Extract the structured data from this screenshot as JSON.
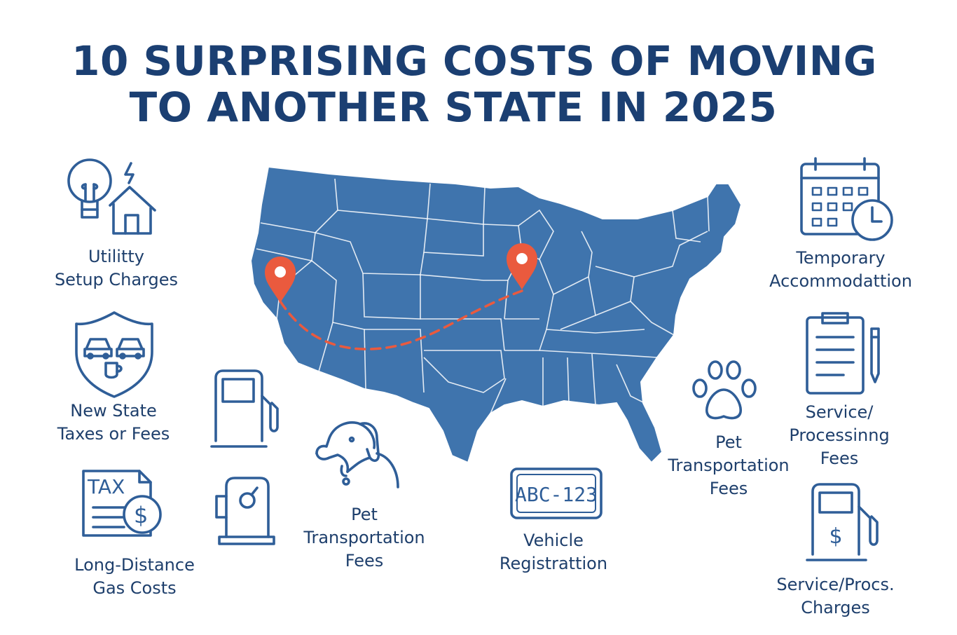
{
  "title": {
    "line1": "10 SURPRISING COSTS OF MOVING",
    "line2": "TO ANOTHER STATE IN 2025"
  },
  "colors": {
    "title": "#1b3f72",
    "map_fill": "#3f74ad",
    "map_borders": "#ffffff",
    "route": "#ea5a3e",
    "icons": "#2f5e98",
    "labels": "#1e3f6c"
  },
  "items": {
    "utility": {
      "icon": "lightbulb-house-icon",
      "line1": "Utilitty",
      "line2": "Setup Charges"
    },
    "taxes": {
      "icon": "shield-cars-icon",
      "line1": "New State",
      "line2": "Taxes or Fees"
    },
    "gas": {
      "icon": "tax-document-dollar-icon",
      "line1": "Long-Distance",
      "line2": "Gas Costs"
    },
    "fuel_pump_1": {
      "icon": "fuel-pump-icon"
    },
    "fuel_pump_2": {
      "icon": "fuel-pump-gauge-icon"
    },
    "pet_center": {
      "icon": "dog-head-icon",
      "line1": "Pet",
      "line2": "Transportation",
      "line3": "Fees"
    },
    "vehicle": {
      "icon": "license-plate-icon",
      "plate_text": "ABC-123",
      "line1": "Vehicle",
      "line2": "Registrattion"
    },
    "pet_right": {
      "icon": "paw-print-icon",
      "line1": "Pet",
      "line2": "Transportation",
      "line3": "Fees"
    },
    "temporary": {
      "icon": "calendar-clock-icon",
      "line1": "Temporary",
      "line2": "Accommodattion"
    },
    "service_fees": {
      "icon": "clipboard-pen-icon",
      "line1": "Service/",
      "line2": "Processinng",
      "line3": "Fees"
    },
    "service_charges": {
      "icon": "fuel-pump-dollar-icon",
      "symbol": "$",
      "line1": "Service/Procs.",
      "line2": "Charges"
    }
  }
}
